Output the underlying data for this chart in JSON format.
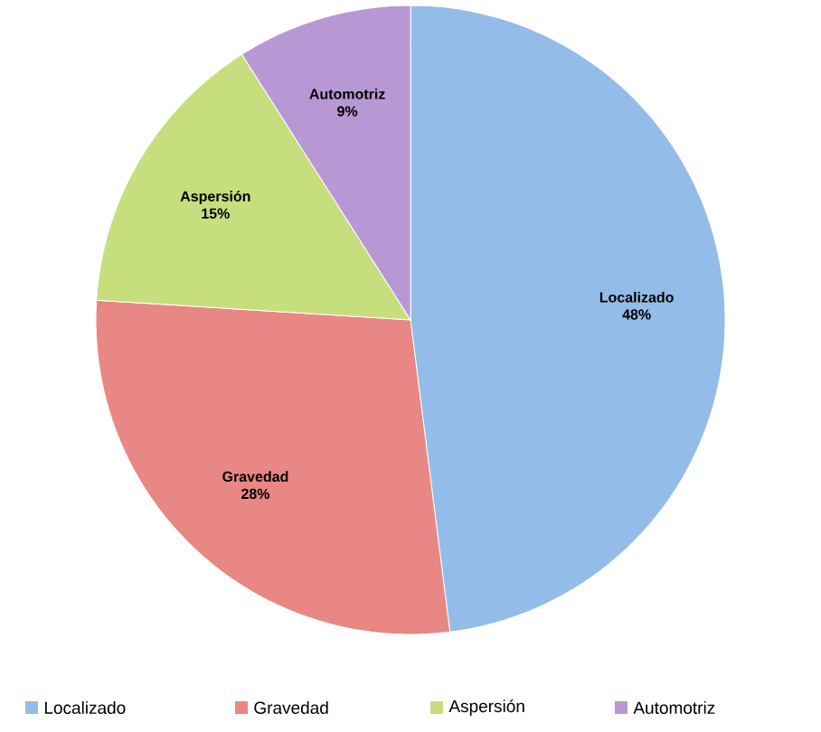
{
  "chart_data": {
    "type": "pie",
    "categories": [
      "Localizado",
      "Gravedad",
      "Aspersión",
      "Automotriz"
    ],
    "values": [
      48,
      28,
      15,
      9
    ],
    "value_labels": [
      "48%",
      "28%",
      "15%",
      "9%"
    ],
    "colors": [
      "#93bce9",
      "#e98784",
      "#c6de7e",
      "#b898d4"
    ],
    "legend": "bottom"
  }
}
